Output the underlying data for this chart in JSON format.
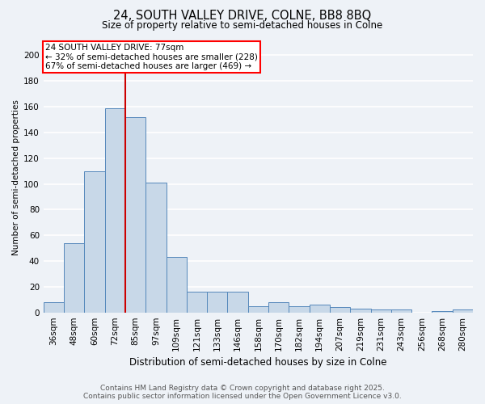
{
  "title1": "24, SOUTH VALLEY DRIVE, COLNE, BB8 8BQ",
  "title2": "Size of property relative to semi-detached houses in Colne",
  "xlabel": "Distribution of semi-detached houses by size in Colne",
  "ylabel": "Number of semi-detached properties",
  "categories": [
    "36sqm",
    "48sqm",
    "60sqm",
    "72sqm",
    "85sqm",
    "97sqm",
    "109sqm",
    "121sqm",
    "133sqm",
    "146sqm",
    "158sqm",
    "170sqm",
    "182sqm",
    "194sqm",
    "207sqm",
    "219sqm",
    "231sqm",
    "243sqm",
    "256sqm",
    "268sqm",
    "280sqm"
  ],
  "values": [
    8,
    54,
    110,
    159,
    152,
    101,
    43,
    16,
    16,
    16,
    5,
    8,
    5,
    6,
    4,
    3,
    2,
    2,
    0,
    1,
    2
  ],
  "bar_color": "#c8d8e8",
  "bar_edge_color": "#5588bb",
  "annotation_line1": "24 SOUTH VALLEY DRIVE: 77sqm",
  "annotation_line2": "← 32% of semi-detached houses are smaller (228)",
  "annotation_line3": "67% of semi-detached houses are larger (469) →",
  "ylim": [
    0,
    210
  ],
  "yticks": [
    0,
    20,
    40,
    60,
    80,
    100,
    120,
    140,
    160,
    180,
    200
  ],
  "red_line_color": "#cc0000",
  "red_line_x": 3.5,
  "footer1": "Contains HM Land Registry data © Crown copyright and database right 2025.",
  "footer2": "Contains public sector information licensed under the Open Government Licence v3.0.",
  "bg_color": "#eef2f7",
  "plot_bg_color": "#eef2f7",
  "grid_color": "#ffffff",
  "title1_fontsize": 10.5,
  "title2_fontsize": 8.5,
  "xlabel_fontsize": 8.5,
  "ylabel_fontsize": 7.5,
  "tick_fontsize": 7.5,
  "annot_fontsize": 7.5,
  "footer_fontsize": 6.5
}
